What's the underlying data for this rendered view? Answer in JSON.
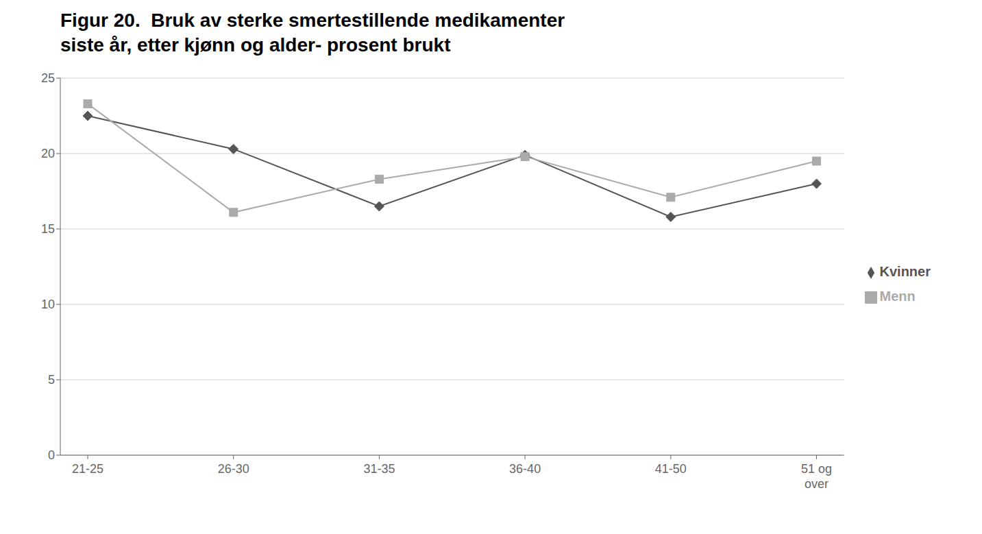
{
  "chart_data": {
    "type": "line",
    "title": "Figur 20.  Bruk av sterke smertestillende medikamenter\nsiste år, etter kjønn og alder- prosent brukt",
    "categories": [
      "21-25",
      "26-30",
      "31-35",
      "36-40",
      "41-50",
      "51 og\nover"
    ],
    "series": [
      {
        "name": "Kvinner",
        "color": "#555555",
        "marker": "diamond",
        "values": [
          22.5,
          20.3,
          16.5,
          19.9,
          15.8,
          18.0
        ]
      },
      {
        "name": "Menn",
        "color": "#aaaaaa",
        "marker": "square",
        "values": [
          23.3,
          16.1,
          18.3,
          19.8,
          17.1,
          19.5
        ]
      }
    ],
    "ylim": [
      0,
      25
    ],
    "yticks": [
      0,
      5,
      10,
      15,
      20,
      25
    ],
    "grid": true,
    "legend": "right"
  }
}
